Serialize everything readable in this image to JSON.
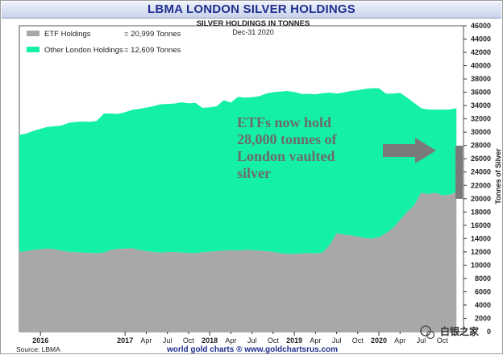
{
  "title": "LBMA LONDON SILVER HOLDINGS",
  "subtitle": "SILVER HOLDINGS IN TONNES",
  "date_label": "Dec-31  2020",
  "footer": {
    "link": "world gold charts ® www.goldchartsrus.com",
    "source": "Source: LBMA"
  },
  "watermark": "白银之家",
  "annotation": [
    "ETFs now hold",
    "28,000 tonnes of",
    "London vaulted",
    "silver"
  ],
  "colors": {
    "etf": "#a8a8a8",
    "other": "#14f0a6",
    "title": "#1f2f8e",
    "arrow": "#7a7a7a"
  },
  "chart_data": {
    "type": "area",
    "ylabel": "Tonnes of Silver",
    "ylim": [
      0,
      46000
    ],
    "ytick_step": 2000,
    "legend_placement": "top-left",
    "legend": [
      {
        "name": "ETF Holdings",
        "value_text": "= 20,999 Tonnes"
      },
      {
        "name": "Other London Holdings",
        "value_text": "= 12,609 Tonnes"
      }
    ],
    "x_ticks": [
      {
        "label": "2016",
        "year": true,
        "m": 0
      },
      {
        "label": "2017",
        "year": true,
        "m": 12
      },
      {
        "label": "Apr",
        "year": false,
        "m": 15
      },
      {
        "label": "Jul",
        "year": false,
        "m": 18
      },
      {
        "label": "Oct",
        "year": false,
        "m": 21
      },
      {
        "label": "2018",
        "year": true,
        "m": 24
      },
      {
        "label": "Apr",
        "year": false,
        "m": 27
      },
      {
        "label": "Jul",
        "year": false,
        "m": 30
      },
      {
        "label": "Oct",
        "year": false,
        "m": 33
      },
      {
        "label": "2019",
        "year": true,
        "m": 36
      },
      {
        "label": "Apr",
        "year": false,
        "m": 39
      },
      {
        "label": "Jul",
        "year": false,
        "m": 42
      },
      {
        "label": "Oct",
        "year": false,
        "m": 45
      },
      {
        "label": "2020",
        "year": true,
        "m": 48
      },
      {
        "label": "Apr",
        "year": false,
        "m": 51
      },
      {
        "label": "Jul",
        "year": false,
        "m": 54
      },
      {
        "label": "Oct",
        "year": false,
        "m": 57
      }
    ],
    "x_months": [
      -3,
      -2,
      -1,
      0,
      1,
      2,
      3,
      4,
      5,
      6,
      7,
      8,
      9,
      10,
      11,
      12,
      13,
      14,
      15,
      16,
      17,
      18,
      19,
      20,
      21,
      22,
      23,
      24,
      25,
      26,
      27,
      28,
      29,
      30,
      31,
      32,
      33,
      34,
      35,
      36,
      37,
      38,
      39,
      40,
      41,
      42,
      43,
      44,
      45,
      46,
      47,
      48,
      49,
      50,
      51,
      52,
      53,
      54,
      55,
      56,
      57,
      58,
      59
    ],
    "series": [
      {
        "name": "ETF Holdings",
        "values": [
          12000,
          12100,
          12300,
          12400,
          12500,
          12400,
          12200,
          12000,
          11950,
          11900,
          11850,
          11800,
          11900,
          12300,
          12450,
          12500,
          12550,
          12300,
          12100,
          12000,
          11900,
          11950,
          12000,
          11900,
          11850,
          11800,
          11950,
          12050,
          12100,
          12200,
          12250,
          12200,
          12300,
          12250,
          12200,
          12100,
          12000,
          11800,
          11700,
          11700,
          11750,
          11800,
          11750,
          11900,
          13000,
          14800,
          14600,
          14500,
          14300,
          14100,
          14000,
          14200,
          14800,
          15600,
          16800,
          18000,
          19000,
          20900,
          20700,
          20900,
          20500,
          20600,
          21000
        ]
      },
      {
        "name": "Other London Holdings",
        "values": [
          17600,
          17700,
          17900,
          18100,
          18300,
          18500,
          18800,
          19400,
          19600,
          19700,
          19700,
          19900,
          20900,
          20500,
          20300,
          20500,
          20800,
          21200,
          21600,
          21900,
          22300,
          22300,
          22300,
          22600,
          22500,
          22600,
          21700,
          21700,
          21800,
          22600,
          22200,
          23100,
          22900,
          23000,
          23200,
          23700,
          24000,
          24300,
          24500,
          24350,
          24000,
          23950,
          23950,
          23950,
          22950,
          21000,
          21350,
          21700,
          22000,
          22400,
          22600,
          22400,
          21000,
          20200,
          19100,
          17200,
          15400,
          12700,
          12700,
          12500,
          12900,
          12800,
          12600
        ]
      }
    ]
  }
}
